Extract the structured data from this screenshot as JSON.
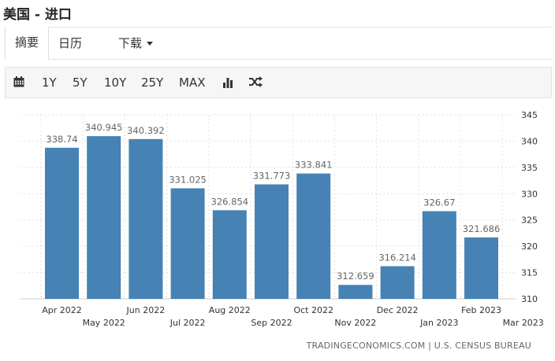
{
  "page": {
    "title": "美国 - 进口"
  },
  "tabs": [
    {
      "label": "摘要",
      "active": true
    },
    {
      "label": "日历",
      "active": false
    },
    {
      "label": "下载",
      "active": false,
      "dropdown": true
    }
  ],
  "toolbar": {
    "calendar_icon": "calendar-icon",
    "ranges": [
      "1Y",
      "5Y",
      "10Y",
      "25Y",
      "MAX"
    ],
    "bar_chart_icon": "bar-chart-icon",
    "shuffle_icon": "shuffle-icon"
  },
  "credit": "TRADINGECONOMICS.COM | U.S. CENSUS BUREAU",
  "colors": {
    "bar": "#4682b4",
    "grid": "#e0e0e0",
    "label": "#666666"
  },
  "chart_data": {
    "type": "bar",
    "categories": [
      "Apr 2022",
      "May 2022",
      "Jun 2022",
      "Jul 2022",
      "Aug 2022",
      "Sep 2022",
      "Oct 2022",
      "Nov 2022",
      "Dec 2022",
      "Jan 2023",
      "Feb 2023"
    ],
    "values": [
      338.74,
      340.945,
      340.392,
      331.025,
      326.854,
      331.773,
      333.841,
      312.659,
      316.214,
      326.67,
      321.686
    ],
    "value_labels": [
      "338.74",
      "340.945",
      "340.392",
      "331.025",
      "326.854",
      "331.773",
      "333.841",
      "312.659",
      "316.214",
      "326.67",
      "321.686"
    ],
    "x_tick_labels": [
      "Apr 2022",
      "May 2022",
      "Jun 2022",
      "Jul 2022",
      "Aug 2022",
      "Sep 2022",
      "Oct 2022",
      "Nov 2022",
      "Dec 2022",
      "Jan 2023",
      "Feb 2023",
      "Mar 2023"
    ],
    "y_ticks": [
      310,
      315,
      320,
      325,
      330,
      335,
      340,
      345
    ],
    "ylim": [
      310,
      345
    ],
    "y_axis_position": "right",
    "grid": true,
    "legend": false,
    "title": "",
    "xlabel": "",
    "ylabel": ""
  }
}
